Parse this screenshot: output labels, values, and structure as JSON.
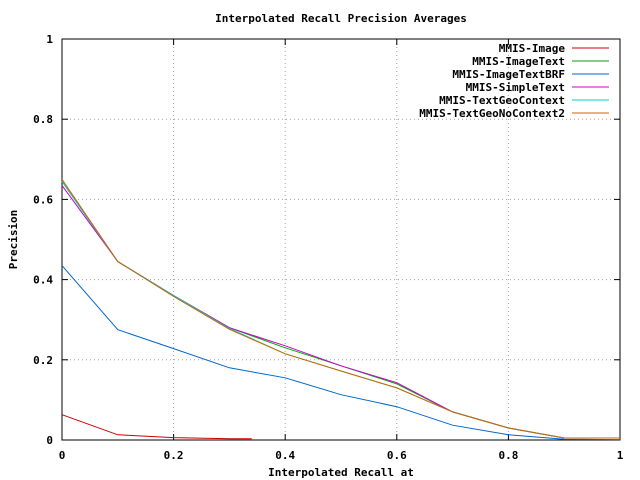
{
  "chart_data": {
    "type": "line",
    "title": "Interpolated Recall Precision Averages",
    "xlabel": "Interpolated Recall at",
    "ylabel": "Precision",
    "xlim": [
      0,
      1
    ],
    "ylim": [
      0,
      1
    ],
    "x_ticks": [
      "0",
      "0.2",
      "0.4",
      "0.6",
      "0.8",
      "1"
    ],
    "y_ticks": [
      "0",
      "0.2",
      "0.4",
      "0.6",
      "0.8",
      "1"
    ],
    "grid": true,
    "legend_position": "top-right",
    "x": [
      0,
      0.1,
      0.2,
      0.3,
      0.4,
      0.5,
      0.6,
      0.7,
      0.8,
      0.9,
      1.0
    ],
    "series": [
      {
        "name": "MMIS-Image",
        "color": "#cc0000",
        "values": [
          0.063,
          0.013,
          0.006,
          0.003,
          null,
          null,
          null,
          null,
          null,
          null,
          null
        ],
        "x_end": 0.34
      },
      {
        "name": "MMIS-ImageText",
        "color": "#00aa00",
        "values": [
          0.645,
          0.445,
          0.36,
          0.28,
          0.23,
          0.185,
          0.14,
          0.07,
          0.03,
          0.005,
          0.005
        ]
      },
      {
        "name": "MMIS-ImageTextBRF",
        "color": "#0066cc",
        "values": [
          0.435,
          0.275,
          0.228,
          0.18,
          0.155,
          0.113,
          0.083,
          0.037,
          0.013,
          0.002,
          0.001
        ]
      },
      {
        "name": "MMIS-SimpleText",
        "color": "#cc00cc",
        "values": [
          0.635,
          0.445,
          0.36,
          0.28,
          0.235,
          0.185,
          0.143,
          0.07,
          0.03,
          0.005,
          0.005
        ]
      },
      {
        "name": "MMIS-TextGeoContext",
        "color": "#00cccc",
        "values": [
          0.645,
          0.445,
          0.36,
          0.278,
          0.215,
          0.172,
          0.13,
          0.07,
          0.03,
          0.005,
          0.005
        ]
      },
      {
        "name": "MMIS-TextGeoNoContext2",
        "color": "#cc6600",
        "values": [
          0.65,
          0.445,
          0.358,
          0.276,
          0.215,
          0.172,
          0.13,
          0.07,
          0.03,
          0.005,
          0.005
        ]
      }
    ]
  }
}
